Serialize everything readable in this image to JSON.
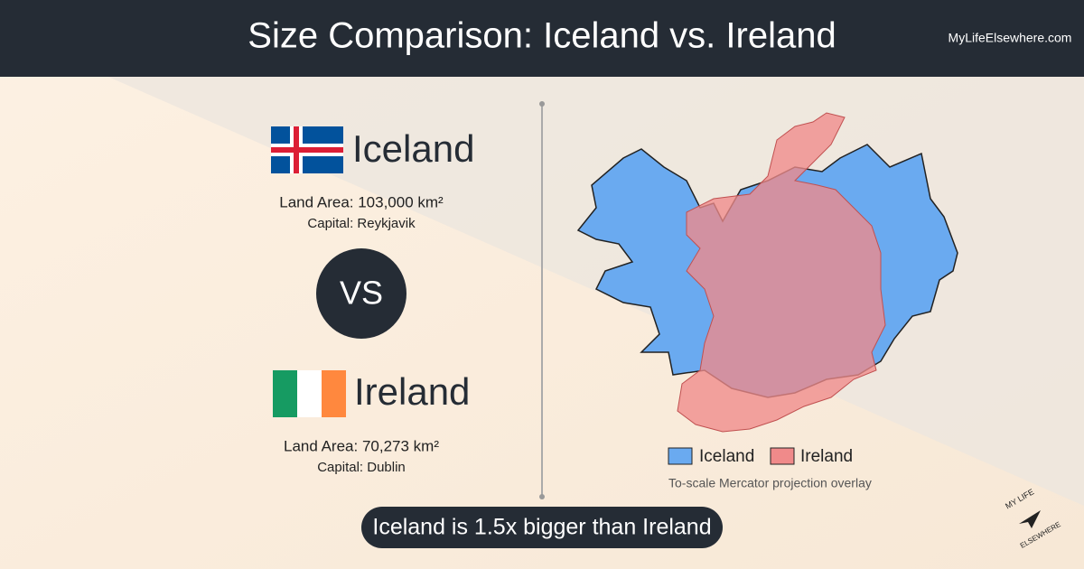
{
  "header": {
    "title": "Size Comparison: Iceland vs. Ireland",
    "site": "MyLifeElsewhere.com"
  },
  "countries": [
    {
      "name": "Iceland",
      "land_area": "Land Area: 103,000 km²",
      "capital": "Capital: Reykjavik"
    },
    {
      "name": "Ireland",
      "land_area": "Land Area: 70,273 km²",
      "capital": "Capital: Dublin"
    }
  ],
  "vs": "VS",
  "map": {
    "legend": [
      "Iceland",
      "Ireland"
    ],
    "note": "To-scale Mercator projection overlay"
  },
  "summary": "Iceland is 1.5x bigger than Ireland",
  "logo": {
    "top": "MY LIFE",
    "bottom": "ELSEWHERE"
  }
}
